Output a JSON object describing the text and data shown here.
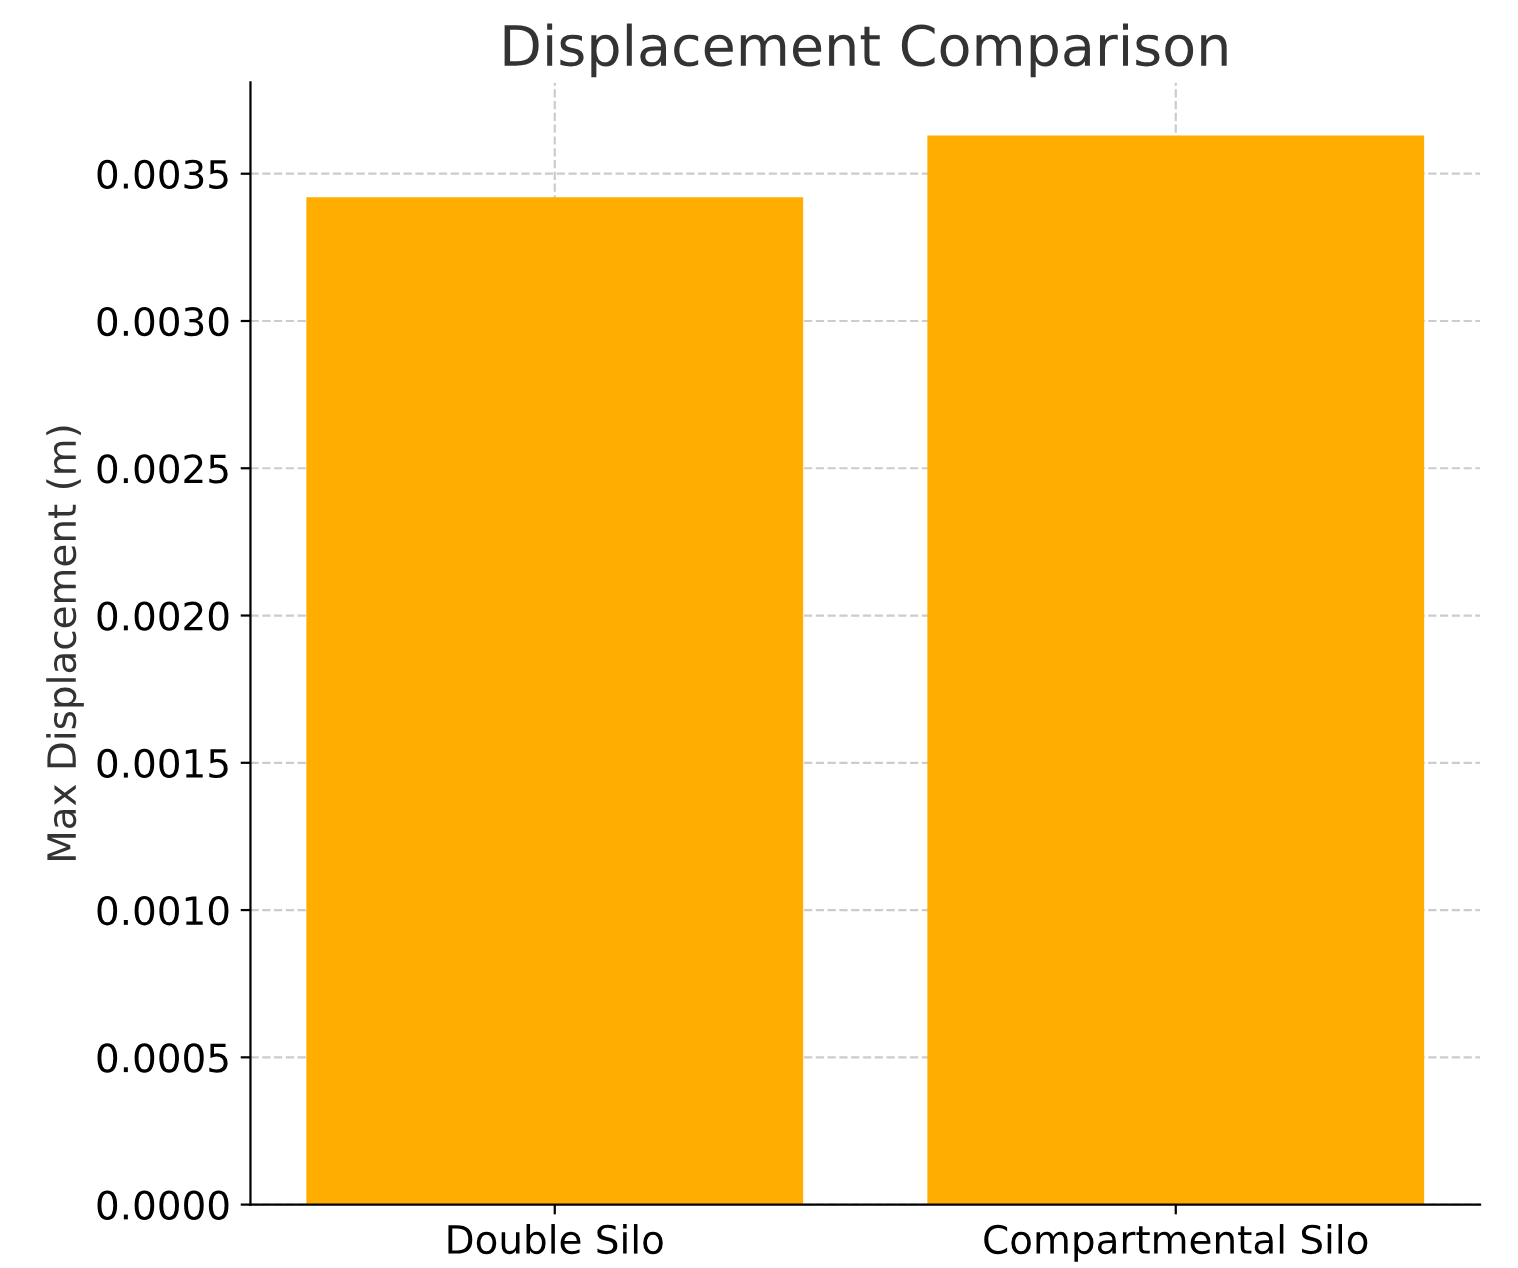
{
  "chart_data": {
    "type": "bar",
    "title": "Displacement Comparison",
    "ylabel": "Max Displacement (m)",
    "categories": [
      "Double Silo",
      "Compartmental Silo"
    ],
    "values": [
      0.00342,
      0.00363
    ],
    "color": "#ffad00",
    "ylim": [
      0,
      0.00381
    ],
    "yticks": [
      {
        "value": 0,
        "label": "0.0000"
      },
      {
        "value": 0.0005,
        "label": "0.0005"
      },
      {
        "value": 0.001,
        "label": "0.0010"
      },
      {
        "value": 0.0015,
        "label": "0.0015"
      },
      {
        "value": 0.002,
        "label": "0.0020"
      },
      {
        "value": 0.0025,
        "label": "0.0025"
      },
      {
        "value": 0.003,
        "label": "0.0030"
      },
      {
        "value": 0.0035,
        "label": "0.0035"
      }
    ],
    "grid": true
  }
}
